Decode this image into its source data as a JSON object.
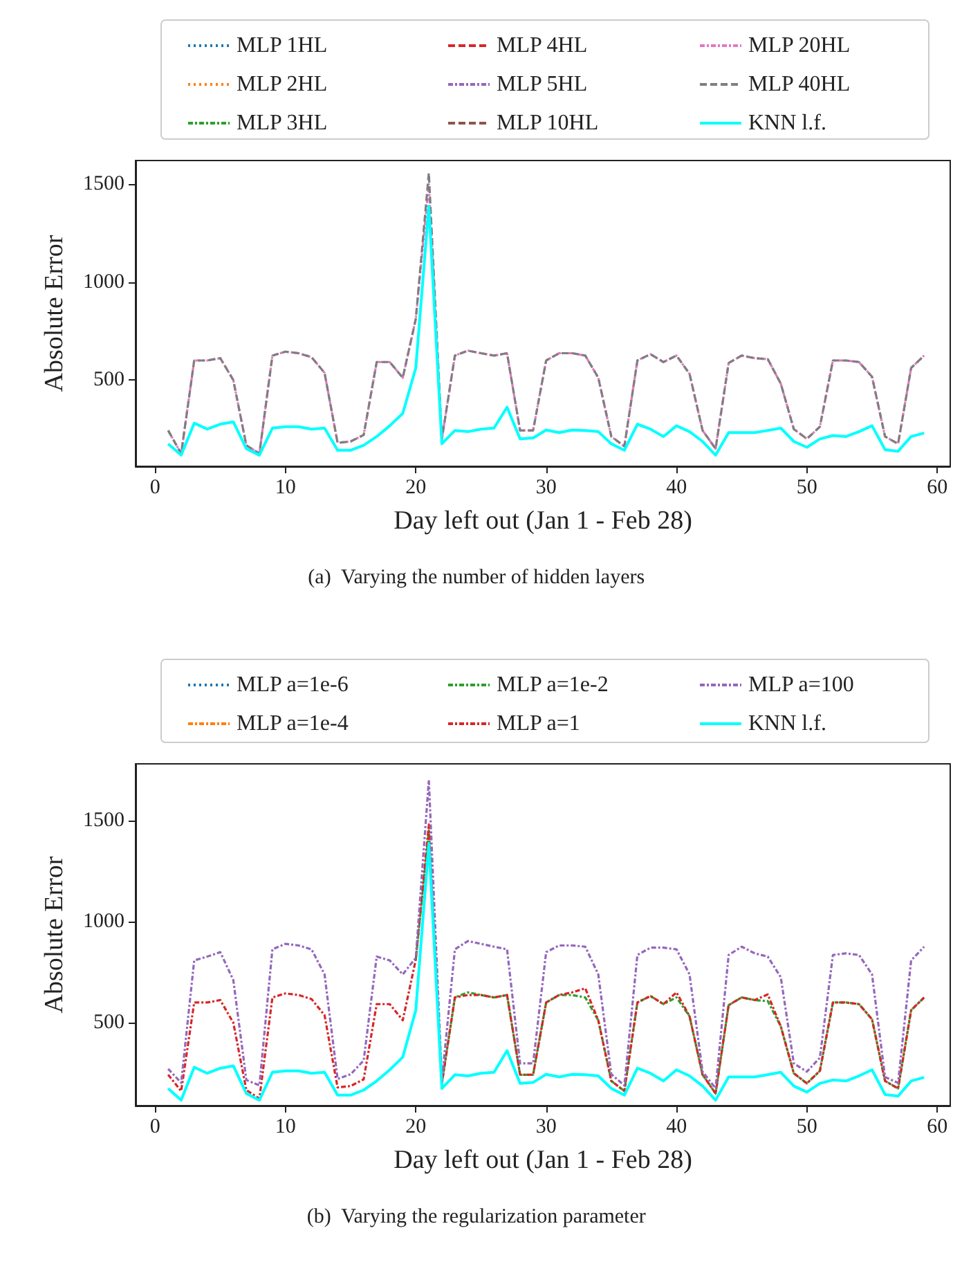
{
  "chart_data": [
    {
      "type": "line",
      "xlabel": "Day left out (Jan 1 - Feb 28)",
      "ylabel": "Absolute Error",
      "annotations": [
        "(a)  Varying the number of hidden layers"
      ],
      "legend": "top",
      "grid": false,
      "marker": "none",
      "xlim": [
        -1.5,
        61
      ],
      "xticks": [
        0,
        10,
        20,
        30,
        40,
        50,
        60
      ],
      "ylim": [
        60,
        1620
      ],
      "yticks": [
        500,
        1000,
        1500
      ],
      "x": [
        1,
        2,
        3,
        4,
        5,
        6,
        7,
        8,
        9,
        10,
        11,
        12,
        13,
        14,
        15,
        16,
        17,
        18,
        19,
        20,
        21,
        22,
        23,
        24,
        25,
        26,
        27,
        28,
        29,
        30,
        31,
        32,
        33,
        34,
        35,
        36,
        37,
        38,
        39,
        40,
        41,
        42,
        43,
        44,
        45,
        46,
        47,
        48,
        49,
        50,
        51,
        52,
        53,
        54,
        55,
        56,
        57,
        58,
        59
      ],
      "series": [
        {
          "name": "MLP 1HL",
          "color": "#1f77b4",
          "line_style": "dotted",
          "values": [
            null,
            null,
            null,
            null,
            null,
            null,
            null,
            null,
            null,
            null,
            null,
            null,
            null,
            null,
            null,
            null,
            null,
            null,
            null,
            null,
            null,
            null,
            null,
            null,
            null,
            null,
            null,
            null,
            null,
            null,
            null,
            null,
            null,
            null,
            null,
            null,
            null,
            null,
            null,
            null,
            null,
            null,
            null,
            null,
            null,
            null,
            null,
            null,
            null,
            null,
            null,
            null,
            null,
            null,
            null,
            null,
            null,
            null,
            null
          ]
        },
        {
          "name": "MLP 2HL",
          "color": "#ff7f0e",
          "line_style": "dotted",
          "values": [
            null,
            null,
            null,
            null,
            null,
            null,
            null,
            null,
            null,
            null,
            null,
            null,
            null,
            null,
            null,
            null,
            null,
            null,
            null,
            null,
            null,
            null,
            null,
            null,
            null,
            null,
            null,
            null,
            null,
            null,
            null,
            null,
            null,
            null,
            null,
            null,
            null,
            null,
            null,
            null,
            null,
            null,
            null,
            null,
            null,
            null,
            null,
            null,
            null,
            null,
            null,
            null,
            null,
            null,
            null,
            null,
            null,
            null,
            null
          ]
        },
        {
          "name": "MLP 3HL",
          "color": "#2ca02c",
          "line_style": "dashdot",
          "values": [
            null,
            null,
            null,
            null,
            null,
            null,
            null,
            null,
            null,
            null,
            null,
            null,
            null,
            null,
            null,
            null,
            null,
            null,
            null,
            null,
            null,
            null,
            null,
            null,
            null,
            null,
            null,
            null,
            null,
            null,
            null,
            null,
            null,
            null,
            null,
            null,
            null,
            null,
            null,
            null,
            null,
            null,
            null,
            null,
            null,
            null,
            null,
            null,
            null,
            null,
            null,
            null,
            null,
            null,
            null,
            null,
            null,
            null,
            null
          ]
        },
        {
          "name": "MLP 4HL",
          "color": "#d62728",
          "line_style": "dashed",
          "values": [
            null,
            null,
            null,
            null,
            null,
            null,
            null,
            null,
            null,
            null,
            null,
            null,
            null,
            null,
            null,
            null,
            null,
            null,
            null,
            null,
            null,
            null,
            null,
            null,
            null,
            null,
            null,
            null,
            null,
            null,
            null,
            null,
            null,
            null,
            null,
            null,
            null,
            null,
            null,
            null,
            null,
            null,
            null,
            null,
            null,
            null,
            null,
            null,
            null,
            null,
            null,
            null,
            null,
            null,
            null,
            null,
            null,
            null,
            null
          ]
        },
        {
          "name": "MLP 5HL",
          "color": "#9467bd",
          "line_style": "dashdot",
          "values": [
            null,
            null,
            null,
            null,
            null,
            null,
            null,
            null,
            null,
            null,
            null,
            null,
            null,
            null,
            null,
            null,
            null,
            null,
            null,
            null,
            null,
            null,
            null,
            null,
            null,
            null,
            null,
            null,
            null,
            null,
            null,
            null,
            null,
            null,
            null,
            null,
            null,
            null,
            null,
            null,
            null,
            null,
            null,
            null,
            null,
            null,
            null,
            null,
            null,
            null,
            null,
            null,
            null,
            null,
            null,
            null,
            null,
            null,
            null
          ]
        },
        {
          "name": "MLP 10HL",
          "color": "#8c564b",
          "line_style": "dashed",
          "values": [
            null,
            null,
            null,
            null,
            null,
            null,
            null,
            null,
            null,
            null,
            null,
            null,
            null,
            null,
            null,
            null,
            null,
            null,
            null,
            null,
            null,
            null,
            null,
            null,
            null,
            null,
            null,
            null,
            null,
            null,
            null,
            null,
            null,
            null,
            null,
            null,
            null,
            null,
            null,
            null,
            null,
            null,
            null,
            null,
            null,
            null,
            null,
            null,
            null,
            null,
            null,
            null,
            null,
            null,
            null,
            null,
            null,
            null,
            null
          ]
        },
        {
          "name": "MLP 20HL",
          "color": "#e377c2",
          "line_style": "dashdot",
          "values": [
            243,
            125,
            600,
            600,
            612,
            500,
            167,
            125,
            625,
            645,
            637,
            617,
            537,
            180,
            187,
            220,
            592,
            592,
            512,
            812,
            1500,
            200,
            625,
            650,
            637,
            625,
            637,
            243,
            243,
            600,
            637,
            637,
            625,
            512,
            212,
            162,
            600,
            632,
            592,
            625,
            532,
            243,
            150,
            587,
            625,
            612,
            607,
            482,
            250,
            200,
            262,
            600,
            600,
            592,
            517,
            212,
            175,
            562,
            625
          ]
        },
        {
          "name": "MLP 40HL",
          "color": "#7f7f7f",
          "line_style": "dashed",
          "values": [
            243,
            125,
            600,
            600,
            612,
            500,
            167,
            125,
            625,
            645,
            637,
            617,
            537,
            180,
            187,
            220,
            592,
            592,
            512,
            812,
            1557,
            200,
            625,
            650,
            637,
            625,
            637,
            243,
            243,
            600,
            637,
            637,
            625,
            512,
            212,
            162,
            600,
            632,
            592,
            625,
            532,
            243,
            150,
            587,
            625,
            612,
            607,
            482,
            250,
            200,
            262,
            600,
            600,
            592,
            517,
            212,
            175,
            562,
            625
          ]
        },
        {
          "name": "KNN l.f.",
          "color": "#00ffff",
          "line_style": "solid",
          "values": [
            175,
            117,
            280,
            250,
            275,
            287,
            150,
            117,
            255,
            262,
            262,
            250,
            255,
            142,
            142,
            167,
            212,
            267,
            330,
            562,
            1387,
            175,
            243,
            237,
            250,
            255,
            362,
            200,
            205,
            245,
            232,
            245,
            243,
            237,
            175,
            142,
            275,
            250,
            212,
            267,
            237,
            187,
            117,
            232,
            232,
            232,
            243,
            255,
            187,
            157,
            200,
            217,
            212,
            237,
            267,
            145,
            137,
            212,
            230
          ]
        }
      ]
    },
    {
      "type": "line",
      "xlabel": "Day left out (Jan 1 - Feb 28)",
      "ylabel": "Absolute Error",
      "annotations": [
        "(b)  Varying the regularization parameter"
      ],
      "legend": "top",
      "grid": false,
      "marker": "none",
      "xlim": [
        -1.5,
        61
      ],
      "xticks": [
        0,
        10,
        20,
        30,
        40,
        50,
        60
      ],
      "ylim": [
        90,
        1780
      ],
      "yticks": [
        500,
        1000,
        1500
      ],
      "x": [
        1,
        2,
        3,
        4,
        5,
        6,
        7,
        8,
        9,
        10,
        11,
        12,
        13,
        14,
        15,
        16,
        17,
        18,
        19,
        20,
        21,
        22,
        23,
        24,
        25,
        26,
        27,
        28,
        29,
        30,
        31,
        32,
        33,
        34,
        35,
        36,
        37,
        38,
        39,
        40,
        41,
        42,
        43,
        44,
        45,
        46,
        47,
        48,
        49,
        50,
        51,
        52,
        53,
        54,
        55,
        56,
        57,
        58,
        59
      ],
      "series": [
        {
          "name": "MLP a=1e-6",
          "color": "#1f77b4",
          "line_style": "dotted",
          "values": [
            null,
            null,
            null,
            null,
            null,
            null,
            null,
            null,
            null,
            null,
            null,
            null,
            null,
            null,
            null,
            null,
            null,
            null,
            null,
            null,
            null,
            null,
            null,
            null,
            null,
            null,
            null,
            null,
            null,
            null,
            null,
            null,
            null,
            null,
            null,
            null,
            null,
            null,
            null,
            null,
            null,
            null,
            null,
            null,
            null,
            null,
            null,
            null,
            null,
            null,
            null,
            null,
            null,
            null,
            null,
            null,
            null,
            null,
            null
          ]
        },
        {
          "name": "MLP a=1e-4",
          "color": "#ff7f0e",
          "line_style": "dashdot",
          "values": [
            null,
            null,
            null,
            null,
            null,
            null,
            null,
            null,
            null,
            null,
            null,
            null,
            null,
            null,
            null,
            null,
            null,
            null,
            null,
            null,
            null,
            null,
            null,
            null,
            null,
            null,
            null,
            null,
            null,
            null,
            null,
            null,
            null,
            null,
            null,
            null,
            null,
            null,
            null,
            null,
            null,
            null,
            null,
            null,
            null,
            null,
            null,
            null,
            null,
            null,
            null,
            null,
            null,
            null,
            null,
            null,
            null,
            null,
            null
          ]
        },
        {
          "name": "MLP a=1e-2",
          "color": "#2ca02c",
          "line_style": "dashdot",
          "values": [
            null,
            null,
            null,
            null,
            null,
            null,
            null,
            null,
            null,
            null,
            null,
            null,
            null,
            null,
            null,
            null,
            null,
            null,
            null,
            812,
            1450,
            200,
            625,
            650,
            637,
            625,
            637,
            243,
            243,
            600,
            637,
            637,
            625,
            512,
            212,
            162,
            600,
            632,
            592,
            625,
            532,
            243,
            150,
            587,
            625,
            612,
            607,
            482,
            250,
            200,
            262,
            600,
            600,
            592,
            517,
            212,
            175,
            562,
            625
          ]
        },
        {
          "name": "MLP a=1",
          "color": "#d62728",
          "line_style": "dashdot",
          "values": [
            243,
            162,
            600,
            600,
            612,
            500,
            167,
            125,
            625,
            645,
            637,
            617,
            537,
            180,
            187,
            220,
            592,
            592,
            512,
            812,
            1480,
            200,
            625,
            637,
            637,
            625,
            637,
            243,
            243,
            600,
            637,
            650,
            670,
            512,
            212,
            162,
            600,
            632,
            592,
            650,
            532,
            243,
            150,
            587,
            625,
            612,
            640,
            482,
            250,
            200,
            262,
            600,
            600,
            592,
            517,
            212,
            175,
            562,
            625
          ]
        },
        {
          "name": "MLP a=100",
          "color": "#9467bd",
          "line_style": "dashdot",
          "values": [
            272,
            203,
            808,
            827,
            849,
            711,
            217,
            190,
            863,
            890,
            882,
            863,
            739,
            222,
            245,
            313,
            827,
            808,
            739,
            821,
            1700,
            217,
            863,
            904,
            890,
            876,
            863,
            299,
            299,
            849,
            882,
            882,
            876,
            739,
            245,
            190,
            835,
            871,
            871,
            863,
            739,
            258,
            176,
            835,
            876,
            843,
            827,
            725,
            299,
            258,
            327,
            835,
            843,
            835,
            739,
            231,
            203,
            808,
            876
          ]
        },
        {
          "name": "KNN l.f.",
          "color": "#00ffff",
          "line_style": "solid",
          "values": [
            175,
            117,
            280,
            250,
            275,
            287,
            150,
            117,
            255,
            262,
            262,
            250,
            255,
            142,
            142,
            167,
            212,
            267,
            330,
            562,
            1387,
            175,
            243,
            237,
            250,
            255,
            362,
            200,
            205,
            245,
            232,
            245,
            243,
            237,
            175,
            142,
            275,
            250,
            212,
            267,
            237,
            187,
            117,
            232,
            232,
            232,
            243,
            255,
            187,
            157,
            200,
            217,
            212,
            237,
            267,
            145,
            137,
            212,
            230
          ]
        }
      ]
    }
  ]
}
